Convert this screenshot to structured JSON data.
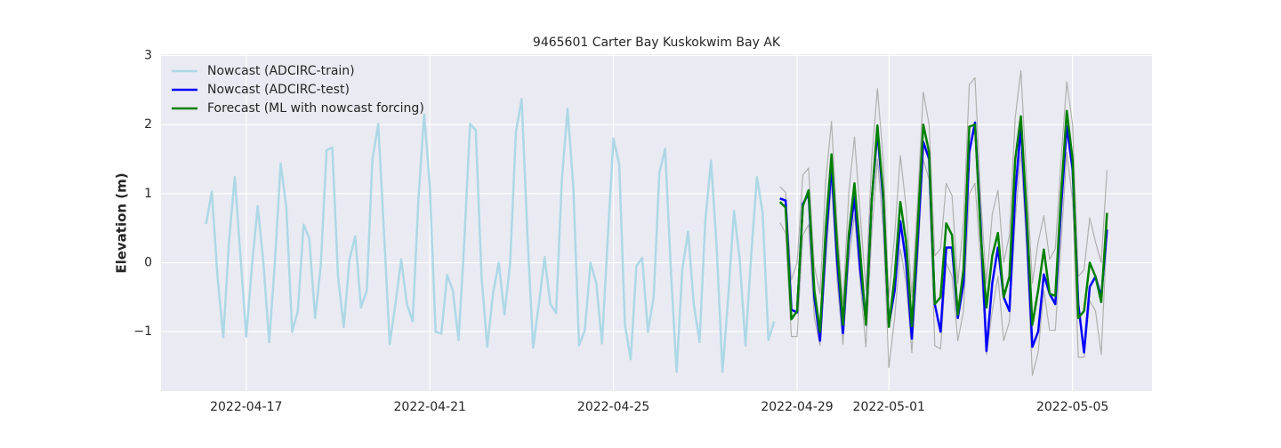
{
  "chart_data": {
    "type": "line",
    "title": "9465601 Carter Bay Kuskokwim Bay AK",
    "y_label": "Elevation (m)",
    "x": [
      "2022-04-16T03:00",
      "2022-04-16T06:00",
      "2022-04-16T09:00",
      "2022-04-16T12:00",
      "2022-04-16T15:00",
      "2022-04-16T18:00",
      "2022-04-16T21:00",
      "2022-04-17T00:00",
      "2022-04-17T03:00",
      "2022-04-17T06:00",
      "2022-04-17T09:00",
      "2022-04-17T12:00",
      "2022-04-17T15:00",
      "2022-04-17T18:00",
      "2022-04-17T21:00",
      "2022-04-18T00:00",
      "2022-04-18T03:00",
      "2022-04-18T06:00",
      "2022-04-18T09:00",
      "2022-04-18T12:00",
      "2022-04-18T15:00",
      "2022-04-18T18:00",
      "2022-04-18T21:00",
      "2022-04-19T00:00",
      "2022-04-19T03:00",
      "2022-04-19T06:00",
      "2022-04-19T09:00",
      "2022-04-19T12:00",
      "2022-04-19T15:00",
      "2022-04-19T18:00",
      "2022-04-19T21:00",
      "2022-04-20T00:00",
      "2022-04-20T03:00",
      "2022-04-20T06:00",
      "2022-04-20T09:00",
      "2022-04-20T12:00",
      "2022-04-20T15:00",
      "2022-04-20T18:00",
      "2022-04-20T21:00",
      "2022-04-21T00:00",
      "2022-04-21T03:00",
      "2022-04-21T06:00",
      "2022-04-21T09:00",
      "2022-04-21T12:00",
      "2022-04-21T15:00",
      "2022-04-21T18:00",
      "2022-04-21T21:00",
      "2022-04-22T00:00",
      "2022-04-22T03:00",
      "2022-04-22T06:00",
      "2022-04-22T09:00",
      "2022-04-22T12:00",
      "2022-04-22T15:00",
      "2022-04-22T18:00",
      "2022-04-22T21:00",
      "2022-04-23T00:00",
      "2022-04-23T03:00",
      "2022-04-23T06:00",
      "2022-04-23T09:00",
      "2022-04-23T12:00",
      "2022-04-23T15:00",
      "2022-04-23T18:00",
      "2022-04-23T21:00",
      "2022-04-24T00:00",
      "2022-04-24T03:00",
      "2022-04-24T06:00",
      "2022-04-24T09:00",
      "2022-04-24T12:00",
      "2022-04-24T15:00",
      "2022-04-24T18:00",
      "2022-04-24T21:00",
      "2022-04-25T00:00",
      "2022-04-25T03:00",
      "2022-04-25T06:00",
      "2022-04-25T09:00",
      "2022-04-25T12:00",
      "2022-04-25T15:00",
      "2022-04-25T18:00",
      "2022-04-25T21:00",
      "2022-04-26T00:00",
      "2022-04-26T03:00",
      "2022-04-26T06:00",
      "2022-04-26T09:00",
      "2022-04-26T12:00",
      "2022-04-26T15:00",
      "2022-04-26T18:00",
      "2022-04-26T21:00",
      "2022-04-27T00:00",
      "2022-04-27T03:00",
      "2022-04-27T06:00",
      "2022-04-27T09:00",
      "2022-04-27T12:00",
      "2022-04-27T15:00",
      "2022-04-27T18:00",
      "2022-04-27T21:00",
      "2022-04-28T00:00",
      "2022-04-28T03:00",
      "2022-04-28T06:00",
      "2022-04-28T09:00",
      "2022-04-28T12:00",
      "2022-04-28T15:00",
      "2022-04-28T18:00",
      "2022-04-28T21:00",
      "2022-04-29T00:00",
      "2022-04-29T03:00",
      "2022-04-29T06:00",
      "2022-04-29T09:00",
      "2022-04-29T12:00",
      "2022-04-29T15:00",
      "2022-04-29T18:00",
      "2022-04-29T21:00",
      "2022-04-30T00:00",
      "2022-04-30T03:00",
      "2022-04-30T06:00",
      "2022-04-30T09:00",
      "2022-04-30T12:00",
      "2022-04-30T15:00",
      "2022-04-30T18:00",
      "2022-04-30T21:00",
      "2022-05-01T00:00",
      "2022-05-01T03:00",
      "2022-05-01T06:00",
      "2022-05-01T09:00",
      "2022-05-01T12:00",
      "2022-05-01T15:00",
      "2022-05-01T18:00",
      "2022-05-01T21:00",
      "2022-05-02T00:00",
      "2022-05-02T03:00",
      "2022-05-02T06:00",
      "2022-05-02T09:00",
      "2022-05-02T12:00",
      "2022-05-02T15:00",
      "2022-05-02T18:00",
      "2022-05-02T21:00",
      "2022-05-03T00:00",
      "2022-05-03T03:00",
      "2022-05-03T06:00",
      "2022-05-03T09:00",
      "2022-05-03T12:00",
      "2022-05-03T15:00",
      "2022-05-03T18:00",
      "2022-05-03T21:00",
      "2022-05-04T00:00",
      "2022-05-04T03:00",
      "2022-05-04T06:00",
      "2022-05-04T09:00",
      "2022-05-04T12:00",
      "2022-05-04T15:00",
      "2022-05-04T18:00",
      "2022-05-04T21:00",
      "2022-05-05T00:00",
      "2022-05-05T03:00",
      "2022-05-05T06:00",
      "2022-05-05T09:00",
      "2022-05-05T12:00",
      "2022-05-05T15:00",
      "2022-05-05T18:00"
    ],
    "series": [
      {
        "color": "#b0b0b0",
        "values": [
          null,
          null,
          null,
          null,
          null,
          null,
          null,
          null,
          null,
          null,
          null,
          null,
          null,
          null,
          null,
          null,
          null,
          null,
          null,
          null,
          null,
          null,
          null,
          null,
          null,
          null,
          null,
          null,
          null,
          null,
          null,
          null,
          null,
          null,
          null,
          null,
          null,
          null,
          null,
          null,
          null,
          null,
          null,
          null,
          null,
          null,
          null,
          null,
          null,
          null,
          null,
          null,
          null,
          null,
          null,
          null,
          null,
          null,
          null,
          null,
          null,
          null,
          null,
          null,
          null,
          null,
          null,
          null,
          null,
          null,
          null,
          null,
          null,
          null,
          null,
          null,
          null,
          null,
          null,
          null,
          null,
          null,
          null,
          null,
          null,
          null,
          null,
          null,
          null,
          null,
          null,
          null,
          null,
          null,
          null,
          null,
          null,
          null,
          null,
          null,
          1.1,
          1.02,
          -0.25,
          0.0,
          1.27,
          1.37,
          -0.05,
          -0.45,
          1.2,
          2.05,
          0.5,
          -0.6,
          1.0,
          1.82,
          0.7,
          -0.4,
          1.5,
          2.52,
          1.5,
          -0.5,
          0.4,
          1.55,
          0.8,
          -0.5,
          0.9,
          2.47,
          2.0,
          0.1,
          0.2,
          1.15,
          0.97,
          -0.3,
          0.6,
          2.58,
          2.68,
          0.9,
          -0.3,
          0.7,
          1.05,
          0.0,
          0.4,
          2.1,
          2.78,
          1.2,
          -0.3,
          0.3,
          0.68,
          0.05,
          0.2,
          1.5,
          2.62,
          2.0,
          -0.2,
          -0.1,
          0.65,
          0.3,
          0.0,
          1.34
        ]
      },
      {
        "color": "#b0b0b0",
        "values": [
          null,
          null,
          null,
          null,
          null,
          null,
          null,
          null,
          null,
          null,
          null,
          null,
          null,
          null,
          null,
          null,
          null,
          null,
          null,
          null,
          null,
          null,
          null,
          null,
          null,
          null,
          null,
          null,
          null,
          null,
          null,
          null,
          null,
          null,
          null,
          null,
          null,
          null,
          null,
          null,
          null,
          null,
          null,
          null,
          null,
          null,
          null,
          null,
          null,
          null,
          null,
          null,
          null,
          null,
          null,
          null,
          null,
          null,
          null,
          null,
          null,
          null,
          null,
          null,
          null,
          null,
          null,
          null,
          null,
          null,
          null,
          null,
          null,
          null,
          null,
          null,
          null,
          null,
          null,
          null,
          null,
          null,
          null,
          null,
          null,
          null,
          null,
          null,
          null,
          null,
          null,
          null,
          null,
          null,
          null,
          null,
          null,
          null,
          null,
          null,
          0.58,
          0.43,
          -1.07,
          -1.07,
          0.4,
          0.55,
          -0.8,
          -1.2,
          0.0,
          1.2,
          -0.3,
          -1.18,
          0.0,
          0.7,
          -0.3,
          -1.22,
          0.4,
          1.5,
          0.5,
          -1.52,
          -0.8,
          0.2,
          -0.3,
          -1.3,
          0.0,
          1.5,
          1.2,
          -1.2,
          -1.25,
          0.0,
          -0.2,
          -1.13,
          -0.7,
          1.0,
          1.15,
          0.0,
          -1.33,
          -0.7,
          -0.2,
          -1.13,
          -0.85,
          0.6,
          1.6,
          0.2,
          -1.63,
          -1.3,
          -0.4,
          -0.98,
          -0.98,
          0.3,
          1.6,
          0.9,
          -1.37,
          -1.37,
          -0.55,
          -0.7,
          -1.33,
          0.45
        ]
      },
      {
        "name": "Nowcast (ADCIRC-train)",
        "color": "#add8e6",
        "values": [
          0.56,
          1.03,
          -0.2,
          -1.08,
          0.3,
          1.24,
          0.1,
          -1.07,
          -0.05,
          0.82,
          0.0,
          -1.15,
          0.0,
          1.44,
          0.8,
          -1.0,
          -0.7,
          0.55,
          0.35,
          -0.8,
          -0.05,
          1.63,
          1.67,
          -0.2,
          -0.93,
          0.05,
          0.38,
          -0.65,
          -0.4,
          1.5,
          2.01,
          0.45,
          -1.18,
          -0.6,
          0.05,
          -0.6,
          -0.85,
          0.9,
          2.15,
          1.1,
          -1.0,
          -1.03,
          -0.18,
          -0.4,
          -1.12,
          0.3,
          2.01,
          1.92,
          -0.2,
          -1.22,
          -0.45,
          0.0,
          -0.75,
          0.0,
          1.9,
          2.37,
          0.4,
          -1.23,
          -0.6,
          0.08,
          -0.6,
          -0.73,
          1.2,
          2.23,
          1.1,
          -1.2,
          -0.98,
          0.0,
          -0.3,
          -1.17,
          0.35,
          1.8,
          1.42,
          -0.9,
          -1.4,
          -0.05,
          0.07,
          -1.0,
          -0.5,
          1.3,
          1.65,
          -0.1,
          -1.58,
          -0.1,
          0.45,
          -0.6,
          -1.15,
          0.6,
          1.48,
          0.2,
          -1.58,
          -0.5,
          0.75,
          0.05,
          -1.2,
          0.1,
          1.24,
          0.72,
          -1.12,
          -0.85,
          null,
          null,
          null,
          null,
          null,
          null,
          null,
          null,
          null,
          null,
          null,
          null,
          null,
          null,
          null,
          null,
          null,
          null,
          null,
          null,
          null,
          null,
          null,
          null,
          null,
          null,
          null,
          null,
          null,
          null,
          null,
          null,
          null,
          null,
          null,
          null,
          null,
          null,
          null,
          null,
          null,
          null,
          null,
          null,
          null,
          null,
          null,
          null,
          null,
          null,
          null,
          null,
          null,
          null,
          null,
          null,
          null,
          null
        ]
      },
      {
        "name": "Nowcast (ADCIRC-test)",
        "color": "#0000ff",
        "values": [
          null,
          null,
          null,
          null,
          null,
          null,
          null,
          null,
          null,
          null,
          null,
          null,
          null,
          null,
          null,
          null,
          null,
          null,
          null,
          null,
          null,
          null,
          null,
          null,
          null,
          null,
          null,
          null,
          null,
          null,
          null,
          null,
          null,
          null,
          null,
          null,
          null,
          null,
          null,
          null,
          null,
          null,
          null,
          null,
          null,
          null,
          null,
          null,
          null,
          null,
          null,
          null,
          null,
          null,
          null,
          null,
          null,
          null,
          null,
          null,
          null,
          null,
          null,
          null,
          null,
          null,
          null,
          null,
          null,
          null,
          null,
          null,
          null,
          null,
          null,
          null,
          null,
          null,
          null,
          null,
          null,
          null,
          null,
          null,
          null,
          null,
          null,
          null,
          null,
          null,
          null,
          null,
          null,
          null,
          null,
          null,
          null,
          null,
          null,
          null,
          0.93,
          0.9,
          -0.68,
          -0.72,
          0.85,
          1.0,
          -0.5,
          -1.13,
          0.3,
          1.4,
          0.0,
          -1.02,
          0.3,
          0.95,
          -0.1,
          -0.85,
          0.9,
          1.9,
          0.9,
          -0.9,
          -0.4,
          0.6,
          0.0,
          -1.1,
          0.3,
          1.75,
          1.5,
          -0.6,
          -1.0,
          0.22,
          0.22,
          -0.8,
          -0.3,
          1.6,
          2.03,
          0.5,
          -1.28,
          -0.3,
          0.22,
          -0.5,
          -0.7,
          1.0,
          1.97,
          0.5,
          -1.22,
          -1.0,
          -0.17,
          -0.45,
          -0.6,
          0.8,
          1.98,
          1.35,
          -0.6,
          -1.3,
          -0.35,
          -0.2,
          -0.5,
          0.48
        ]
      },
      {
        "name": "Forecast (ML with nowcast forcing)",
        "color": "#008000",
        "values": [
          null,
          null,
          null,
          null,
          null,
          null,
          null,
          null,
          null,
          null,
          null,
          null,
          null,
          null,
          null,
          null,
          null,
          null,
          null,
          null,
          null,
          null,
          null,
          null,
          null,
          null,
          null,
          null,
          null,
          null,
          null,
          null,
          null,
          null,
          null,
          null,
          null,
          null,
          null,
          null,
          null,
          null,
          null,
          null,
          null,
          null,
          null,
          null,
          null,
          null,
          null,
          null,
          null,
          null,
          null,
          null,
          null,
          null,
          null,
          null,
          null,
          null,
          null,
          null,
          null,
          null,
          null,
          null,
          null,
          null,
          null,
          null,
          null,
          null,
          null,
          null,
          null,
          null,
          null,
          null,
          null,
          null,
          null,
          null,
          null,
          null,
          null,
          null,
          null,
          null,
          null,
          null,
          null,
          null,
          null,
          null,
          null,
          null,
          null,
          null,
          0.88,
          0.8,
          -0.82,
          -0.7,
          0.82,
          1.05,
          -0.4,
          -1.0,
          0.5,
          1.57,
          0.2,
          -0.9,
          0.4,
          1.15,
          0.15,
          -0.9,
          0.9,
          1.99,
          1.0,
          -0.93,
          -0.2,
          0.88,
          0.3,
          -0.92,
          0.5,
          2.0,
          1.6,
          -0.6,
          -0.5,
          0.57,
          0.4,
          -0.75,
          -0.1,
          1.97,
          2.0,
          0.4,
          -0.65,
          0.1,
          0.43,
          -0.5,
          -0.2,
          1.5,
          2.12,
          0.7,
          -0.9,
          -0.4,
          0.19,
          -0.45,
          -0.48,
          1.0,
          2.2,
          1.5,
          -0.8,
          -0.7,
          0.0,
          -0.2,
          -0.57,
          0.72
        ]
      }
    ],
    "xlim": [
      "2022-04-15T03:27",
      "2022-05-06T17:33"
    ],
    "xticks": [
      "2022-04-17",
      "2022-04-21",
      "2022-04-25",
      "2022-04-29",
      "2022-05-01",
      "2022-05-05"
    ],
    "ylim": [
      -1.86,
      3.02
    ],
    "yticks": [
      {
        "value": -1,
        "label": "−1"
      },
      0,
      1,
      2,
      3
    ],
    "grid": true,
    "legend": "upper left"
  }
}
